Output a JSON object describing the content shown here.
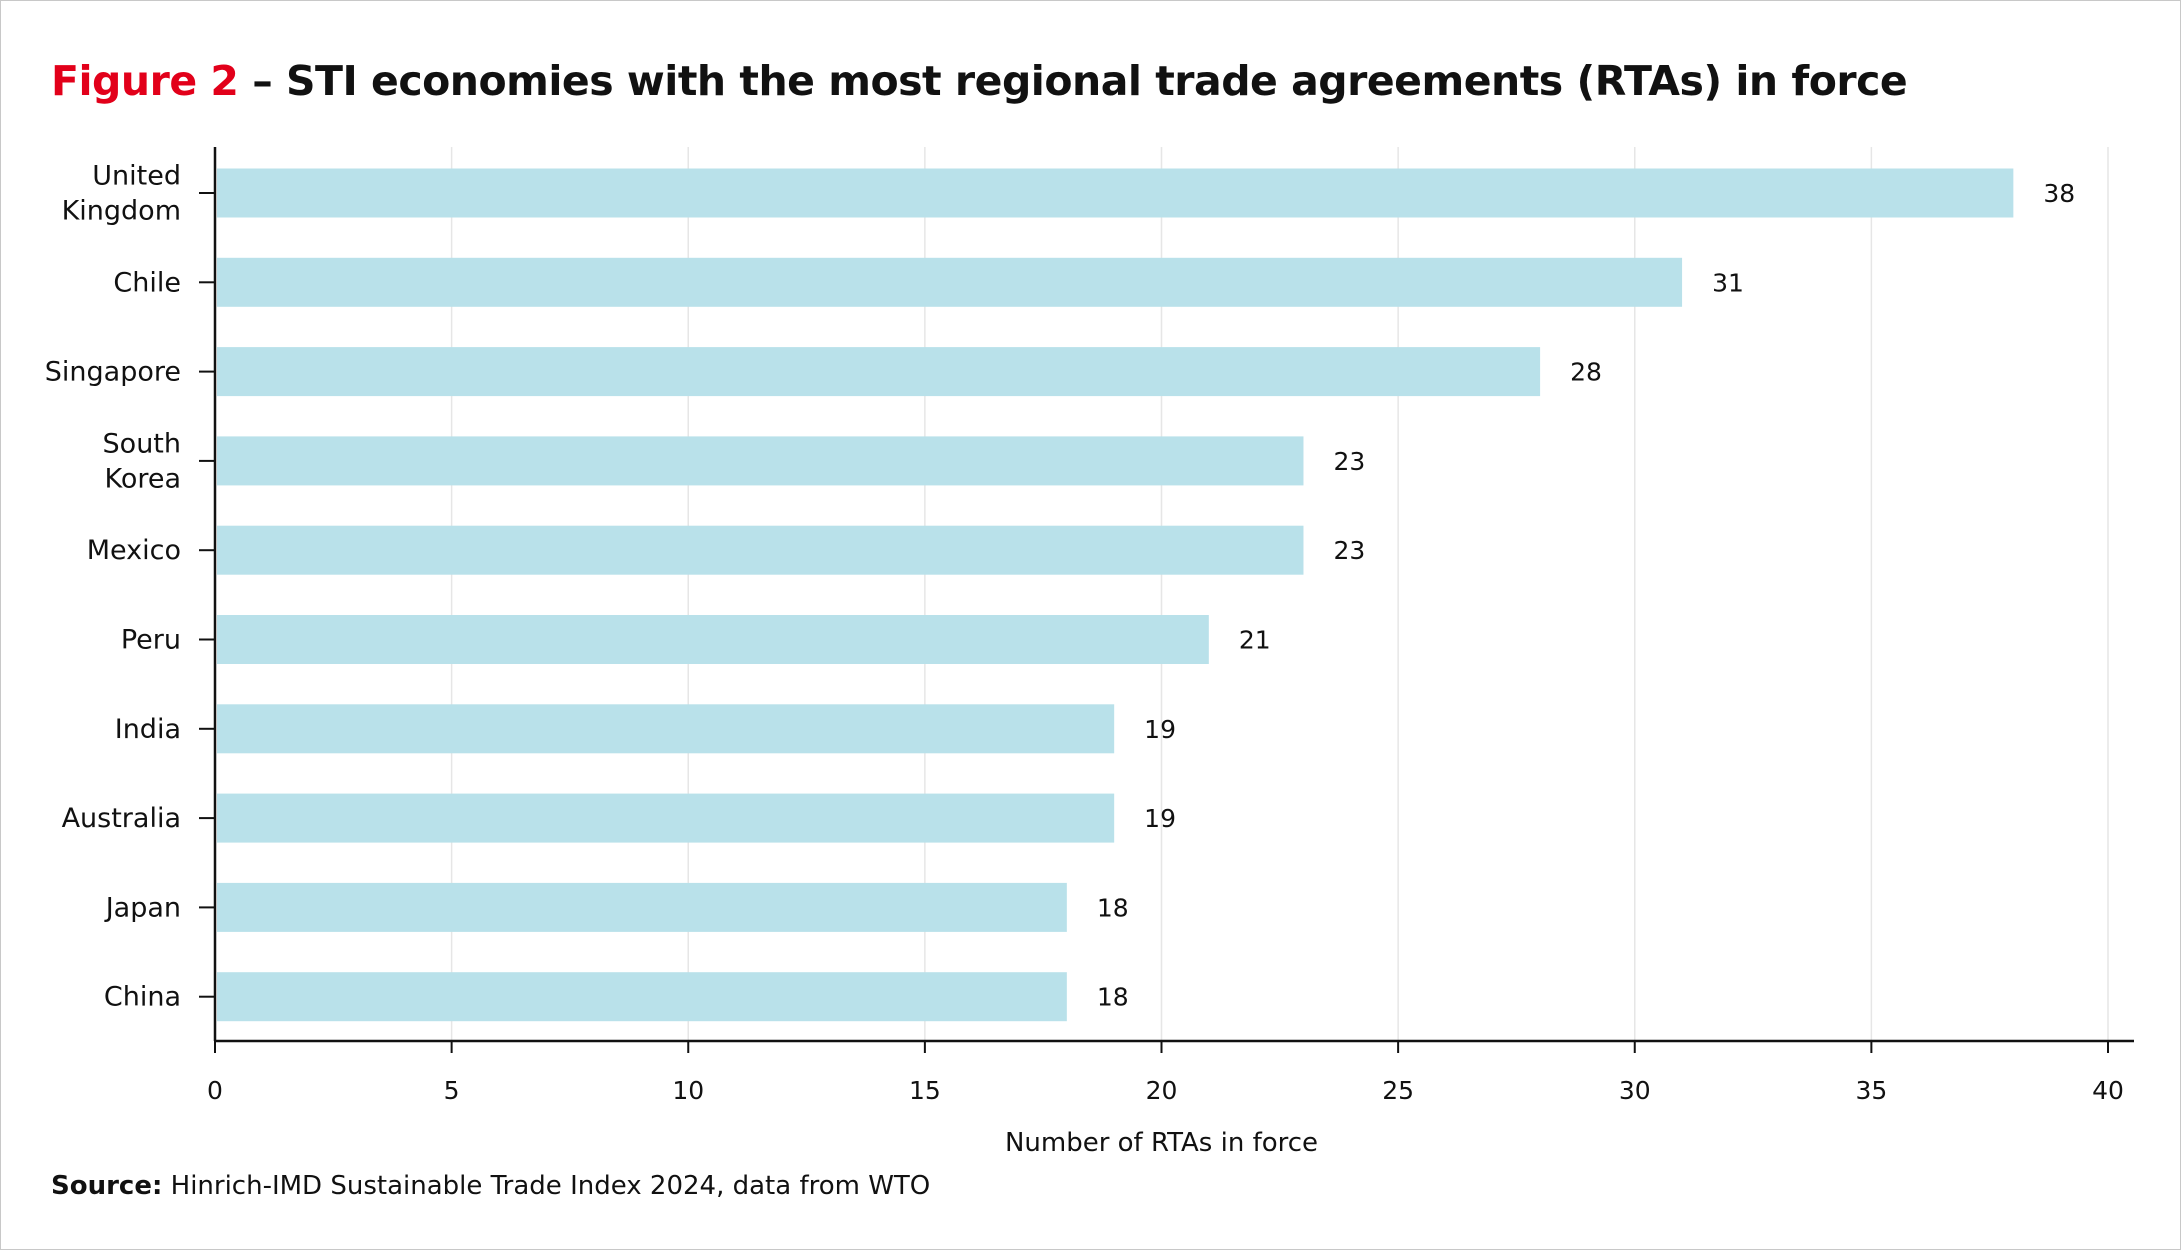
{
  "title": {
    "figure": "Figure 2",
    "text": " – STI economies with the most regional trade agreements (RTAs) in force"
  },
  "source": {
    "label": "Source:",
    "text": " Hinrich-IMD Sustainable Trade Index 2024, data from WTO"
  },
  "colors": {
    "bar": "#b9e1ea",
    "accent": "#e2001a",
    "grid": "#e6e6e6"
  },
  "chart_data": {
    "type": "bar",
    "orientation": "horizontal",
    "title": "STI economies with the most regional trade agreements (RTAs) in force",
    "categories": [
      [
        "United",
        "Kingdom"
      ],
      [
        "Chile"
      ],
      [
        "Singapore"
      ],
      [
        "South",
        "Korea"
      ],
      [
        "Mexico"
      ],
      [
        "Peru"
      ],
      [
        "India"
      ],
      [
        "Australia"
      ],
      [
        "Japan"
      ],
      [
        "China"
      ]
    ],
    "values": [
      38,
      31,
      28,
      23,
      23,
      21,
      19,
      19,
      18,
      18
    ],
    "xlabel": "Number of RTAs in force",
    "ylabel": "",
    "xlim": [
      0,
      40
    ],
    "xticks": [
      0,
      5,
      10,
      15,
      20,
      25,
      30,
      35,
      40
    ],
    "grid": true
  }
}
